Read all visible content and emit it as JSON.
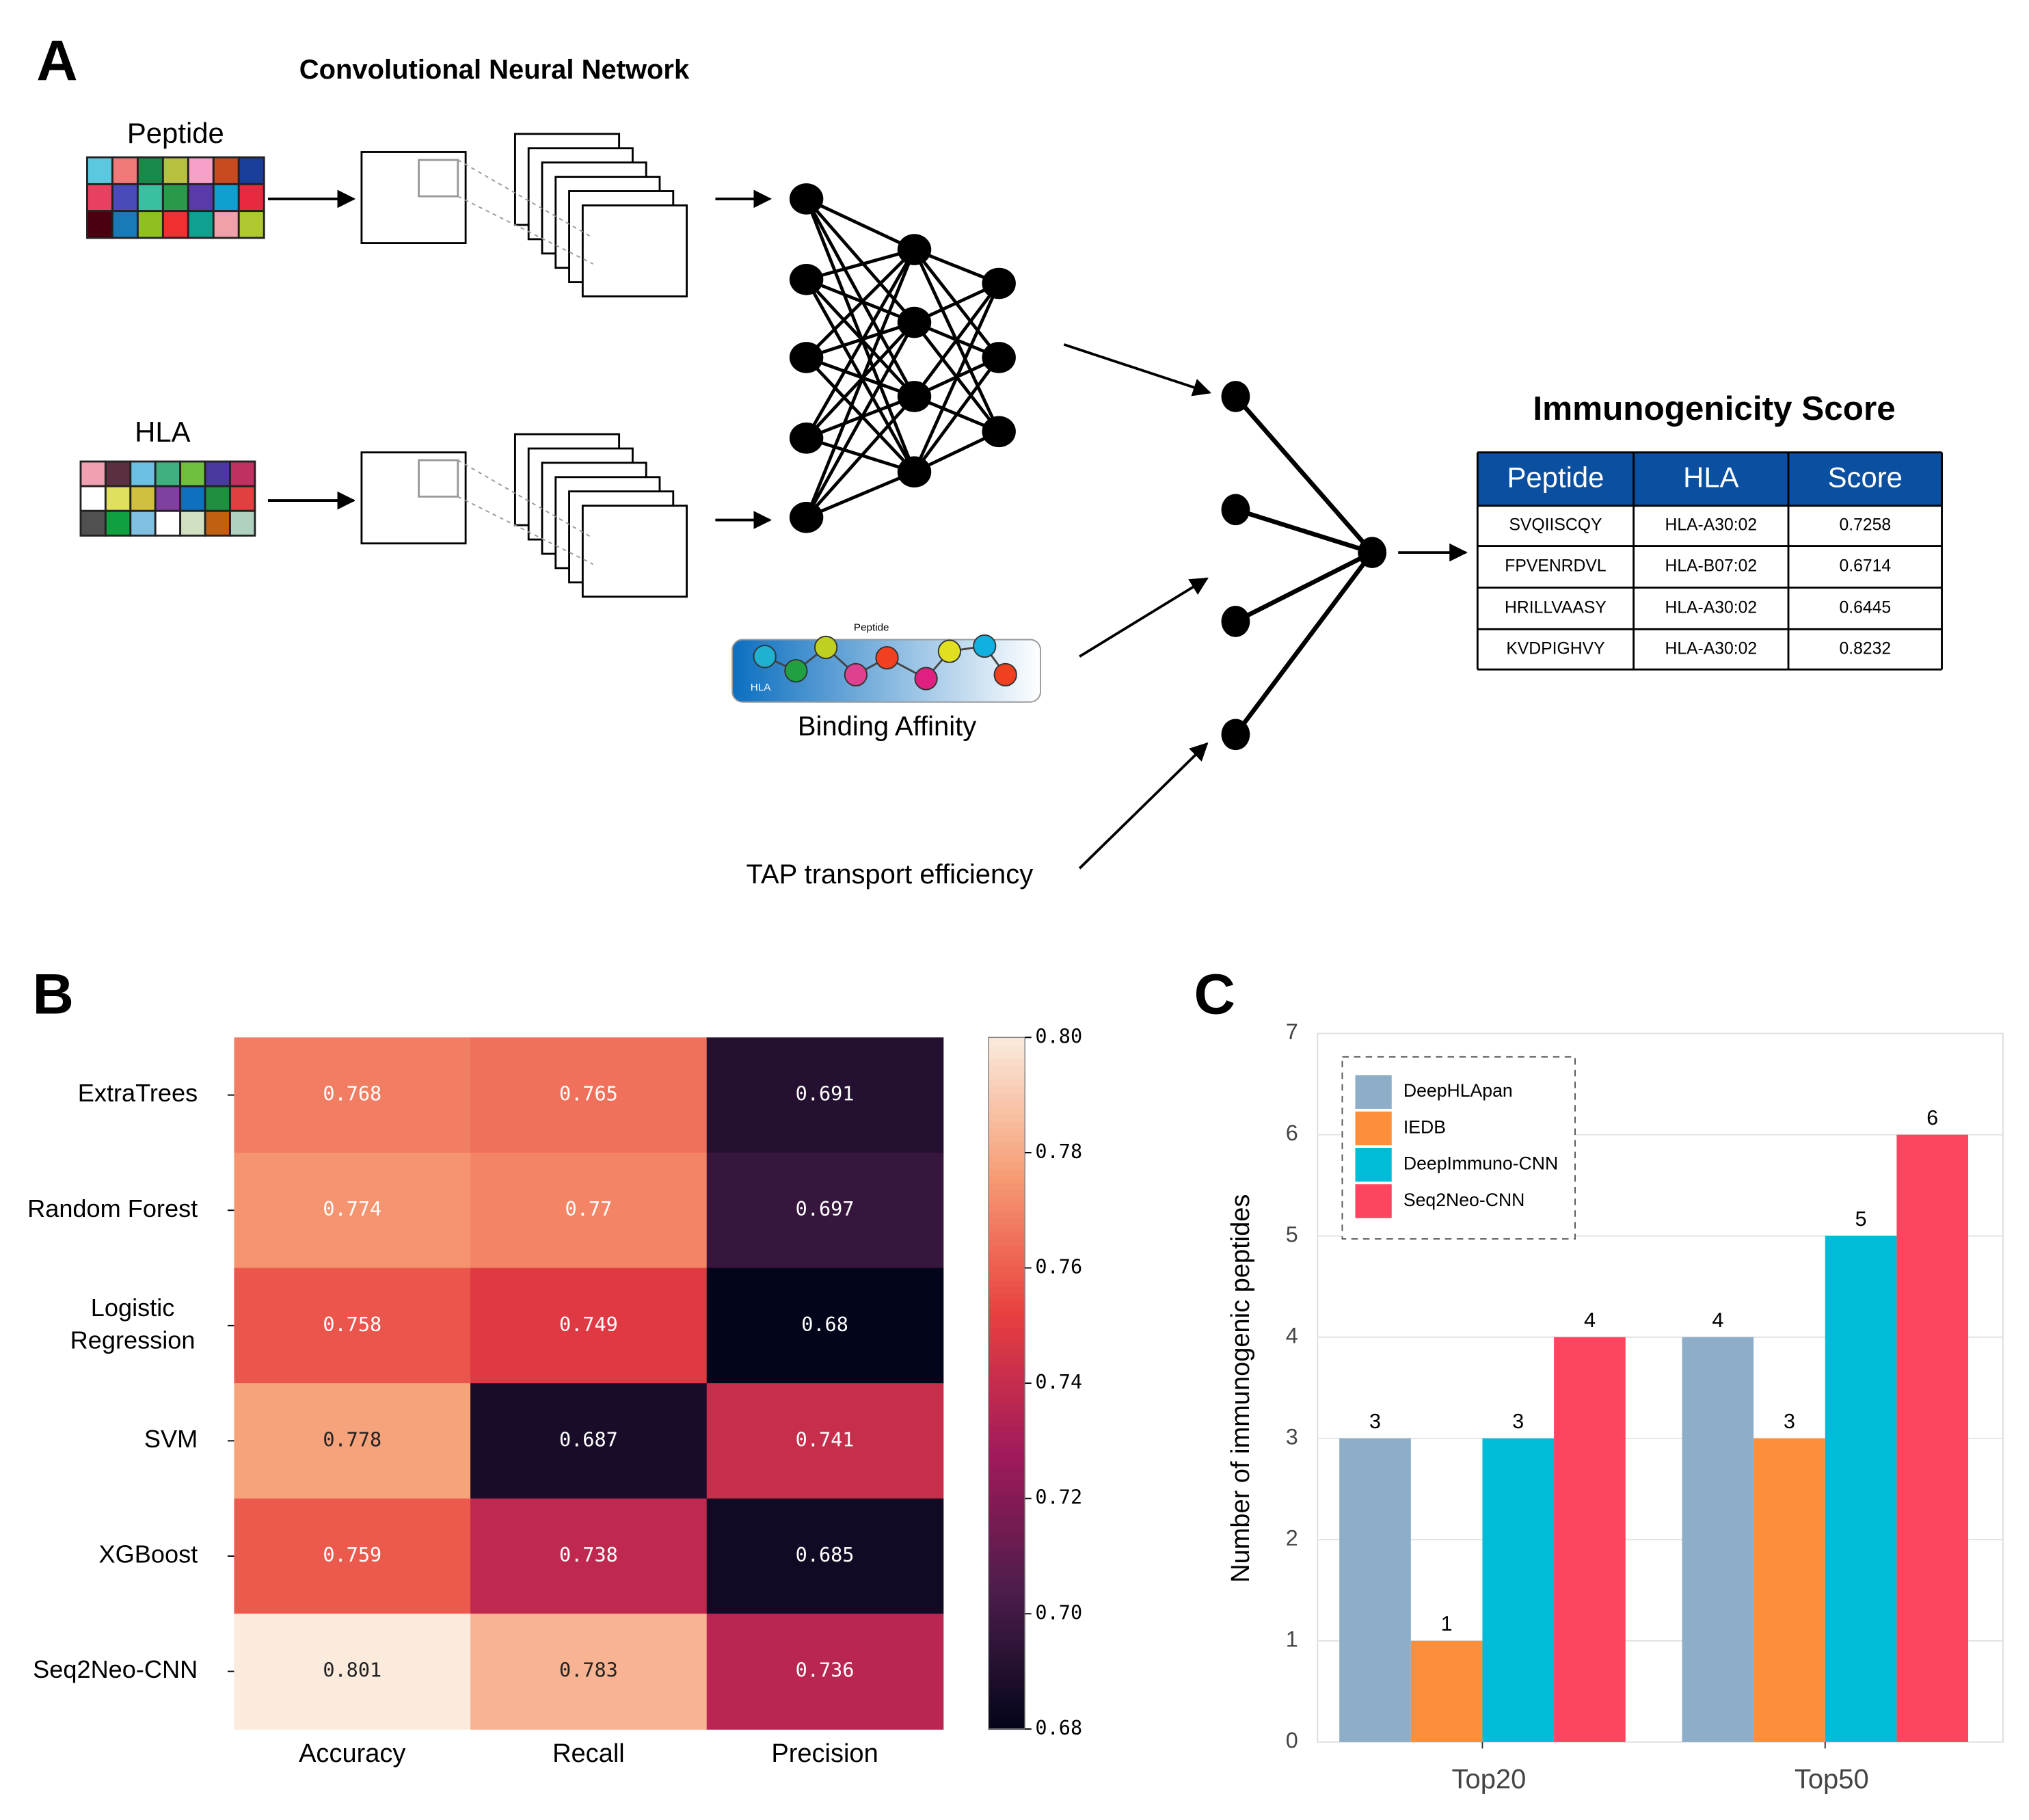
{
  "panel_labels": [
    "A",
    "B",
    "C"
  ],
  "diagram": {
    "cnn_title": "Convolutional Neural Network",
    "peptide_label": "Peptide",
    "hla_label": "HLA",
    "binding_peptide": "Peptide",
    "binding_hla": "HLA",
    "binding_affinity": "Binding Affinity",
    "tap": "TAP transport efficiency",
    "score_title": "Immunogenicity Score",
    "table": {
      "header": [
        "Peptide",
        "HLA",
        "Score"
      ],
      "rows": [
        [
          "SVQIISCQY",
          "HLA-A30:02",
          "0.7258"
        ],
        [
          "FPVENRDVL",
          "HLA-B07:02",
          "0.6714"
        ],
        [
          "HRILLVAASY",
          "HLA-A30:02",
          "0.6445"
        ],
        [
          "KVDPIGHVY",
          "HLA-A30:02",
          "0.8232"
        ]
      ]
    }
  },
  "chart_data": [
    {
      "type": "heatmap",
      "rows": [
        "ExtraTrees",
        "Random Forest",
        "Logistic Regression",
        "SVM",
        "XGBoost",
        "Seq2Neo-CNN"
      ],
      "columns": [
        "Accuracy",
        "Recall",
        "Precision"
      ],
      "values": [
        [
          0.768,
          0.765,
          0.691
        ],
        [
          0.774,
          0.77,
          0.697
        ],
        [
          0.758,
          0.749,
          0.68
        ],
        [
          0.778,
          0.687,
          0.741
        ],
        [
          0.759,
          0.738,
          0.685
        ],
        [
          0.801,
          0.783,
          0.736
        ]
      ],
      "colormap": [
        "#03051a",
        "#4c1d4b",
        "#a11a5b",
        "#e83f3f",
        "#f69c73",
        "#faebdd"
      ],
      "zlim": [
        0.68,
        0.8
      ],
      "zticks": [
        0.68,
        {
          "value": 0.7,
          "label": "0.70"
        },
        0.72,
        0.74,
        0.76,
        0.78,
        {
          "value": 0.8,
          "label": "0.80"
        }
      ]
    },
    {
      "type": "bar",
      "categories": [
        "Top20",
        "Top50"
      ],
      "ylabel": "Number of immunogenic peptides",
      "series": [
        {
          "name": "DeepHLApan",
          "color": "#8eadc8",
          "values": [
            3,
            4
          ]
        },
        {
          "name": "IEDB",
          "color": "#fd8e3a",
          "values": [
            1,
            3
          ]
        },
        {
          "name": "DeepImmuno-CNN",
          "color": "#00bcd8",
          "values": [
            3,
            5
          ]
        },
        {
          "name": "Seq2Neo-CNN",
          "color": "#fd4560",
          "values": [
            4,
            6
          ]
        }
      ],
      "ylim": [
        0,
        7
      ],
      "yticks": [
        0,
        1,
        2,
        3,
        4,
        5,
        6,
        7
      ],
      "grid": true,
      "legend": "upper left"
    }
  ]
}
